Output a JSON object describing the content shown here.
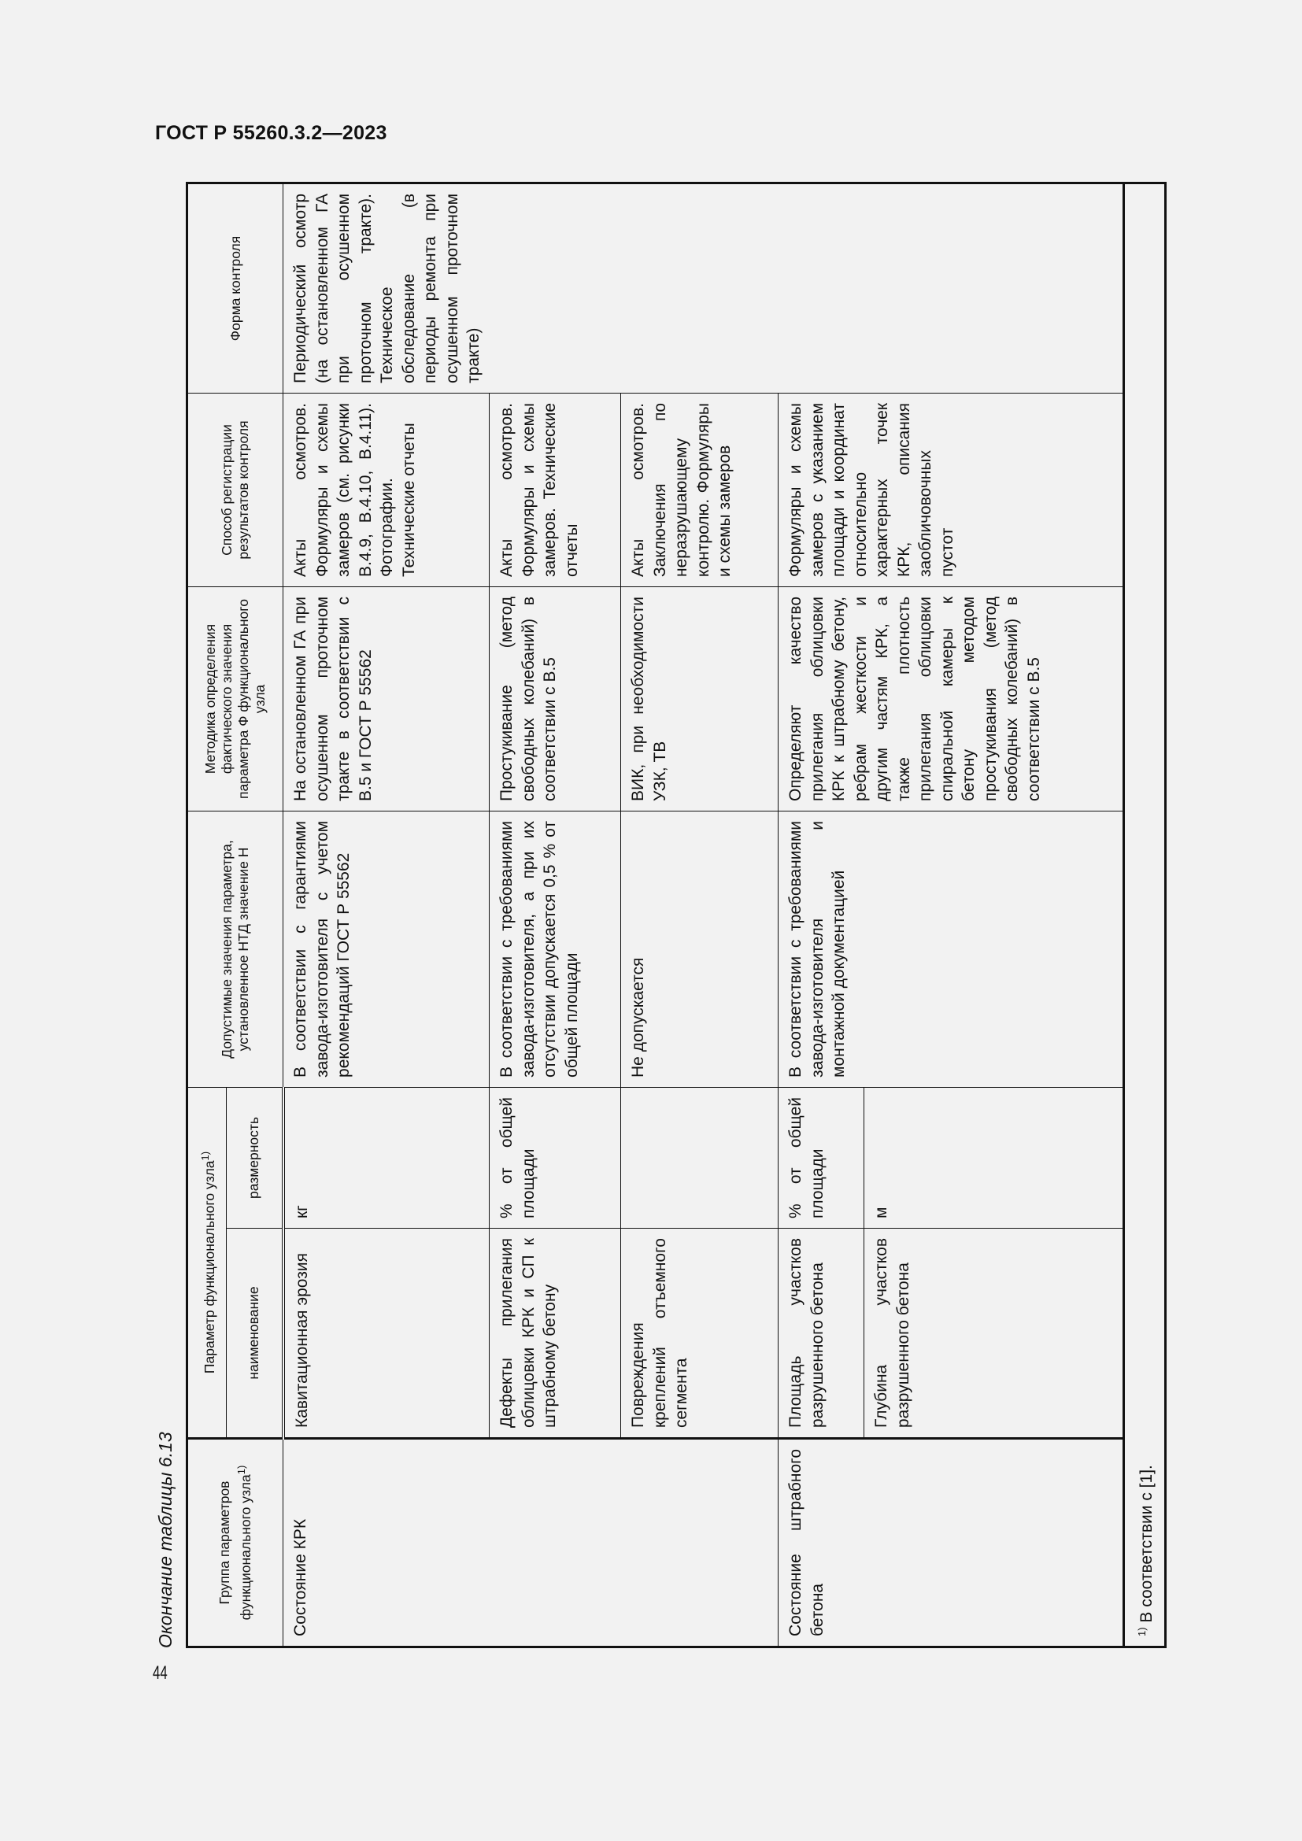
{
  "doc_title": "ГОСТ Р 55260.3.2—2023",
  "page_number": "44",
  "caption": "Окончание таблицы 6.13",
  "header": {
    "group": "Группа параметров функционального узла",
    "group_sup": "1)",
    "param": "Параметр функционального узла",
    "param_sup": "1)",
    "name": "наименование",
    "dimension": "размерность",
    "allowed": "Допустимые значения параметра, установленное НТД значение Н",
    "method": "Методика определения фактического значения параметра Ф функционального узла",
    "registration": "Способ регистрации результатов контроля",
    "form": "Форма контроля"
  },
  "groups": [
    "Состояние КРК",
    "Состояние штрабного бетона"
  ],
  "rows": [
    {
      "name": "Кавитационная эрозия",
      "dimension": "кг",
      "allowed": "В соответствии с гарантиями завода-изготовителя с учетом рекомендаций ГОСТ Р 55562",
      "method": "На остановленном ГА при осушенном проточном тракте в соответствии с В.5 и ГОСТ Р 55562",
      "registration": "Акты осмотров. Формуляры и схемы замеров (см. рисунки В.4.9, В.4.10, В.4.11). Фотографии. Технические отчеты"
    },
    {
      "name": "Дефекты прилегания облицовки КРК и СП к штрабному бетону",
      "dimension": "% от общей площади",
      "allowed": "В соответствии с требованиями завода-изготовителя, а при их отсутствии допускается 0,5 % от общей площади",
      "method": "Простукивание (метод свободных колебаний) в соответствии с В.5",
      "registration": "Акты осмотров. Формуляры и схемы замеров. Технические отчеты"
    },
    {
      "name": "Повреждения креплений отъемного сегмента",
      "dimension": "",
      "allowed": "Не допускается",
      "method": "ВИК, при необходимости УЗК, ТВ",
      "registration": "Акты осмотров. Заключения по неразрушающему контролю. Формуляры и схемы замеров"
    },
    {
      "name": "Площадь участков разрушенного бетона",
      "dimension": "% от общей площади",
      "allowed": "В соответствии с требованиями завода-изготовителя и монтажной документацией",
      "method": "Определяют качество прилегания облицовки КРК к штрабному бетону, ребрам жесткости и другим частям КРК, а также плотность прилегания облицовки спиральной камеры к бетону методом простукивания (метод свободных колебаний) в соответствии с В.5",
      "registration": "Формуляры и схемы замеров с указанием площади и координат относительно характерных точек КРК, описания заобличовочных пустот"
    },
    {
      "name": "Глубина участков разрушенного бетона",
      "dimension": "м"
    }
  ],
  "form": "Периодический осмотр (на остановленном ГА при осушенном проточном тракте). Техническое обследование (в периоды ремонта при осушенном проточном тракте)",
  "footnote": {
    "mark": "1)",
    "text": "В соответствии с [1]."
  }
}
